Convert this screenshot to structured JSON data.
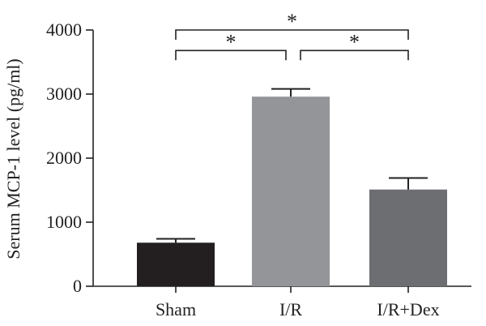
{
  "chart_data": {
    "type": "bar",
    "ylabel": "Serum MCP-1 level (pg/ml)",
    "xlabel": "",
    "categories": [
      "Sham",
      "I/R",
      "I/R+Dex"
    ],
    "values": [
      680,
      2960,
      1510
    ],
    "errors": [
      60,
      120,
      180
    ],
    "bar_colors": [
      "#231f20",
      "#939598",
      "#6d6e71"
    ],
    "ylim": [
      0,
      4000
    ],
    "yticks": [
      0,
      1000,
      2000,
      3000,
      4000
    ],
    "ytick_labels": [
      "0",
      "1000",
      "2000",
      "3000",
      "4000"
    ],
    "grid": false,
    "significance": [
      {
        "from": 0,
        "to": 2,
        "label": "*",
        "level": 4000
      },
      {
        "from": 0,
        "to": 1,
        "label": "*",
        "level": 3680
      },
      {
        "from": 1,
        "to": 2,
        "label": "*",
        "level": 3680
      }
    ]
  }
}
